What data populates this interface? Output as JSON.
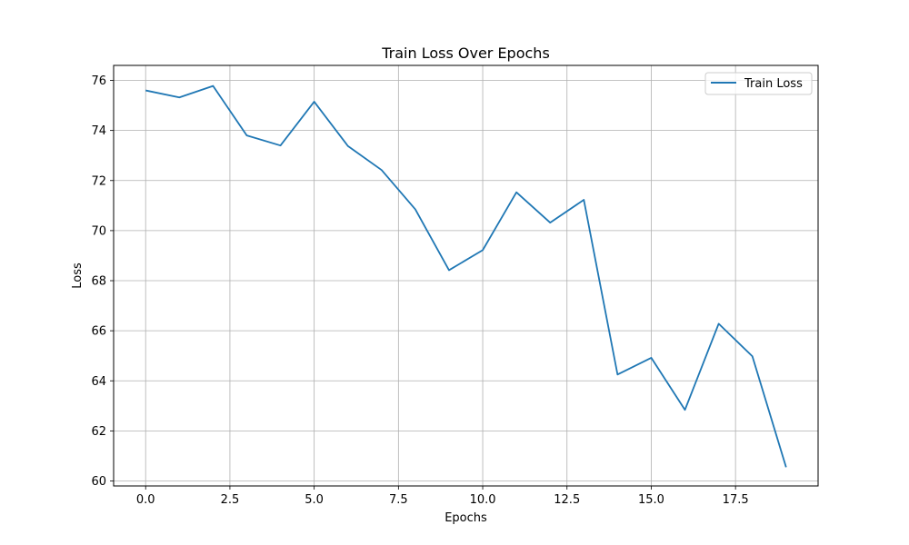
{
  "chart_data": {
    "type": "line",
    "title": "Train Loss Over Epochs",
    "xlabel": "Epochs",
    "ylabel": "Loss",
    "xlim": [
      -0.95,
      19.95
    ],
    "ylim": [
      59.8,
      76.6
    ],
    "xticks": [
      0.0,
      2.5,
      5.0,
      7.5,
      10.0,
      12.5,
      15.0,
      17.5
    ],
    "xtick_labels": [
      "0.0",
      "2.5",
      "5.0",
      "7.5",
      "10.0",
      "12.5",
      "15.0",
      "17.5"
    ],
    "yticks": [
      60,
      62,
      64,
      66,
      68,
      70,
      72,
      74,
      76
    ],
    "ytick_labels": [
      "60",
      "62",
      "64",
      "66",
      "68",
      "70",
      "72",
      "74",
      "76"
    ],
    "grid": true,
    "legend_position": "top-right",
    "series": [
      {
        "name": "Train Loss",
        "color": "#1f77b4",
        "x": [
          0,
          1,
          2,
          3,
          4,
          5,
          6,
          7,
          8,
          9,
          10,
          11,
          12,
          13,
          14,
          15,
          16,
          17,
          18,
          19
        ],
        "y": [
          75.6,
          75.32,
          75.78,
          73.8,
          73.4,
          75.15,
          73.38,
          72.42,
          70.85,
          68.42,
          69.22,
          71.53,
          70.32,
          71.23,
          64.25,
          64.92,
          62.84,
          66.28,
          64.98,
          60.55
        ]
      }
    ]
  }
}
